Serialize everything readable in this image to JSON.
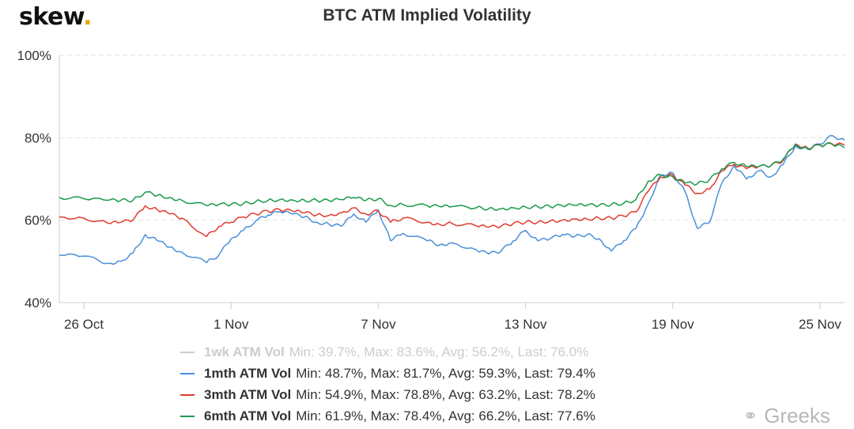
{
  "brand": {
    "name": "skew",
    "dot": "."
  },
  "watermark": {
    "text": "Greeks",
    "icon": "wechat-icon"
  },
  "colors": {
    "1wk": "#cccccc",
    "1mth": "#4a90d9",
    "3mth": "#e03c31",
    "6mth": "#1a9a4a",
    "grid": "#e2e2e2",
    "axis": "#cccccc"
  },
  "legend": [
    {
      "name": "1wk ATM Vol",
      "stats": "Min: 39.7%, Max: 83.6%, Avg: 56.2%, Last: 76.0%",
      "hidden": true
    },
    {
      "name": "1mth ATM Vol",
      "stats": "Min: 48.7%, Max: 81.7%, Avg: 59.3%, Last: 79.4%"
    },
    {
      "name": "3mth ATM Vol",
      "stats": "Min: 54.9%, Max: 78.8%, Avg: 63.2%, Last: 78.2%"
    },
    {
      "name": "6mth ATM Vol",
      "stats": "Min: 61.9%, Max: 78.4%, Avg: 66.2%, Last: 77.6%"
    }
  ],
  "chart_data": {
    "type": "line",
    "title": "BTC ATM Implied Volatility",
    "xlabel": "",
    "ylabel": "",
    "x_range": [
      "2020-10-25",
      "2020-11-26"
    ],
    "ylim": [
      40,
      100
    ],
    "y_ticks": [
      40,
      60,
      80,
      100
    ],
    "y_tick_labels": [
      "40%",
      "60%",
      "80%",
      "100%"
    ],
    "x_ticks": [
      {
        "date": "2020-10-26",
        "label": "26 Oct"
      },
      {
        "date": "2020-11-01",
        "label": "1 Nov"
      },
      {
        "date": "2020-11-07",
        "label": "7 Nov"
      },
      {
        "date": "2020-11-13",
        "label": "13 Nov"
      },
      {
        "date": "2020-11-19",
        "label": "19 Nov"
      },
      {
        "date": "2020-11-25",
        "label": "25 Nov"
      }
    ],
    "grid": true,
    "legend_position": "bottom",
    "series": [
      {
        "name": "1mth ATM Vol",
        "color": "#4a90d9",
        "x": [
          "2020-10-25",
          "2020-10-26",
          "2020-10-27",
          "2020-10-27 12:00",
          "2020-10-28",
          "2020-10-28 12:00",
          "2020-10-29",
          "2020-10-29 12:00",
          "2020-10-30",
          "2020-10-31",
          "2020-10-31 12:00",
          "2020-11-01",
          "2020-11-01 12:00",
          "2020-11-02",
          "2020-11-02 12:00",
          "2020-11-03",
          "2020-11-03 12:00",
          "2020-11-04",
          "2020-11-04 12:00",
          "2020-11-05",
          "2020-11-05 12:00",
          "2020-11-06",
          "2020-11-06 12:00",
          "2020-11-07",
          "2020-11-07 12:00",
          "2020-11-08",
          "2020-11-09",
          "2020-11-09 12:00",
          "2020-11-10",
          "2020-11-11",
          "2020-11-11 12:00",
          "2020-11-12",
          "2020-11-12 12:00",
          "2020-11-13",
          "2020-11-13 12:00",
          "2020-11-14",
          "2020-11-14 12:00",
          "2020-11-15",
          "2020-11-15 12:00",
          "2020-11-16",
          "2020-11-16 12:00",
          "2020-11-17",
          "2020-11-17 12:00",
          "2020-11-18",
          "2020-11-18 12:00",
          "2020-11-19",
          "2020-11-19 12:00",
          "2020-11-20",
          "2020-11-20 12:00",
          "2020-11-21",
          "2020-11-21 12:00",
          "2020-11-22",
          "2020-11-22 12:00",
          "2020-11-23",
          "2020-11-23 12:00",
          "2020-11-24",
          "2020-11-24 12:00",
          "2020-11-25",
          "2020-11-25 12:00",
          "2020-11-26"
        ],
        "values": [
          51.5,
          51.3,
          49.5,
          50,
          52,
          56.5,
          55,
          53.5,
          52.2,
          49.7,
          51.5,
          55.5,
          57.5,
          59.8,
          61.2,
          62.1,
          61.5,
          60.8,
          59.5,
          59,
          58.5,
          61.5,
          59.5,
          62.5,
          55,
          56.8,
          55,
          54,
          54.5,
          52.8,
          51.8,
          52.5,
          55,
          57.5,
          55,
          55.5,
          56.5,
          56,
          56.5,
          55.5,
          52.5,
          55,
          58,
          64,
          71,
          71.5,
          67,
          58,
          59.5,
          69,
          73.2,
          70,
          72,
          70.5,
          73.5,
          78,
          77.2,
          78.5,
          80.5,
          79.4
        ]
      },
      {
        "name": "3mth ATM Vol",
        "color": "#e03c31",
        "x": [
          "2020-10-25",
          "2020-10-26",
          "2020-10-27",
          "2020-10-27 12:00",
          "2020-10-28",
          "2020-10-28 12:00",
          "2020-10-29",
          "2020-10-29 12:00",
          "2020-10-30",
          "2020-10-31",
          "2020-10-31 12:00",
          "2020-11-01",
          "2020-11-01 12:00",
          "2020-11-02",
          "2020-11-02 12:00",
          "2020-11-03",
          "2020-11-03 12:00",
          "2020-11-04",
          "2020-11-04 12:00",
          "2020-11-05",
          "2020-11-05 12:00",
          "2020-11-06",
          "2020-11-06 12:00",
          "2020-11-07",
          "2020-11-07 12:00",
          "2020-11-08",
          "2020-11-09",
          "2020-11-09 12:00",
          "2020-11-10",
          "2020-11-11",
          "2020-11-11 12:00",
          "2020-11-12",
          "2020-11-12 12:00",
          "2020-11-13",
          "2020-11-13 12:00",
          "2020-11-14",
          "2020-11-14 12:00",
          "2020-11-15",
          "2020-11-15 12:00",
          "2020-11-16",
          "2020-11-16 12:00",
          "2020-11-17",
          "2020-11-17 12:00",
          "2020-11-18",
          "2020-11-18 12:00",
          "2020-11-19",
          "2020-11-19 12:00",
          "2020-11-20",
          "2020-11-20 12:00",
          "2020-11-21",
          "2020-11-21 12:00",
          "2020-11-22",
          "2020-11-22 12:00",
          "2020-11-23",
          "2020-11-23 12:00",
          "2020-11-24",
          "2020-11-24 12:00",
          "2020-11-25",
          "2020-11-25 12:00",
          "2020-11-26"
        ],
        "values": [
          60.8,
          60.5,
          59.2,
          59.5,
          60,
          63.5,
          62.5,
          61.5,
          60.5,
          56,
          58.5,
          59.5,
          60.8,
          61.5,
          62.2,
          62.5,
          62.2,
          61.8,
          61.3,
          61.2,
          61.8,
          63,
          61.5,
          62.2,
          59.5,
          60.5,
          59.5,
          59,
          59.2,
          58.6,
          58.3,
          58.5,
          59.2,
          59.5,
          59.5,
          59.8,
          60,
          60.3,
          60.3,
          60.5,
          60.5,
          61,
          62,
          67,
          70.5,
          71,
          68.5,
          66.5,
          67.5,
          72,
          73.5,
          72.5,
          73,
          73.2,
          74.5,
          78.5,
          77.5,
          78.2,
          78.5,
          78.2
        ]
      },
      {
        "name": "6mth ATM Vol",
        "color": "#1a9a4a",
        "x": [
          "2020-10-25",
          "2020-10-26",
          "2020-10-27",
          "2020-10-27 12:00",
          "2020-10-28",
          "2020-10-28 12:00",
          "2020-10-29",
          "2020-10-29 12:00",
          "2020-10-30",
          "2020-10-31",
          "2020-10-31 12:00",
          "2020-11-01",
          "2020-11-01 12:00",
          "2020-11-02",
          "2020-11-02 12:00",
          "2020-11-03",
          "2020-11-03 12:00",
          "2020-11-04",
          "2020-11-04 12:00",
          "2020-11-05",
          "2020-11-05 12:00",
          "2020-11-06",
          "2020-11-06 12:00",
          "2020-11-07",
          "2020-11-07 12:00",
          "2020-11-08",
          "2020-11-09",
          "2020-11-09 12:00",
          "2020-11-10",
          "2020-11-11",
          "2020-11-11 12:00",
          "2020-11-12",
          "2020-11-12 12:00",
          "2020-11-13",
          "2020-11-13 12:00",
          "2020-11-14",
          "2020-11-14 12:00",
          "2020-11-15",
          "2020-11-15 12:00",
          "2020-11-16",
          "2020-11-16 12:00",
          "2020-11-17",
          "2020-11-17 12:00",
          "2020-11-18",
          "2020-11-18 12:00",
          "2020-11-19",
          "2020-11-19 12:00",
          "2020-11-20",
          "2020-11-20 12:00",
          "2020-11-21",
          "2020-11-21 12:00",
          "2020-11-22",
          "2020-11-22 12:00",
          "2020-11-23",
          "2020-11-23 12:00",
          "2020-11-24",
          "2020-11-24 12:00",
          "2020-11-25",
          "2020-11-25 12:00",
          "2020-11-26"
        ],
        "values": [
          65.5,
          65.2,
          64.8,
          64.8,
          64.8,
          66.8,
          66,
          65.5,
          64.8,
          63.5,
          63.8,
          63.8,
          64,
          64.5,
          64.8,
          65,
          64.9,
          64.8,
          64.8,
          64.7,
          65,
          65.5,
          64.8,
          65.2,
          63.6,
          63.8,
          63.5,
          63.3,
          63.3,
          63,
          62.8,
          62.8,
          63,
          63.2,
          63.3,
          63.3,
          63.5,
          63.6,
          63.6,
          63.6,
          63.8,
          64.1,
          65,
          69.5,
          71,
          70.5,
          69,
          68.8,
          69.8,
          72.5,
          74,
          73,
          73,
          73.2,
          74.8,
          78.3,
          77.3,
          78.2,
          78.4,
          77.6
        ]
      }
    ]
  }
}
